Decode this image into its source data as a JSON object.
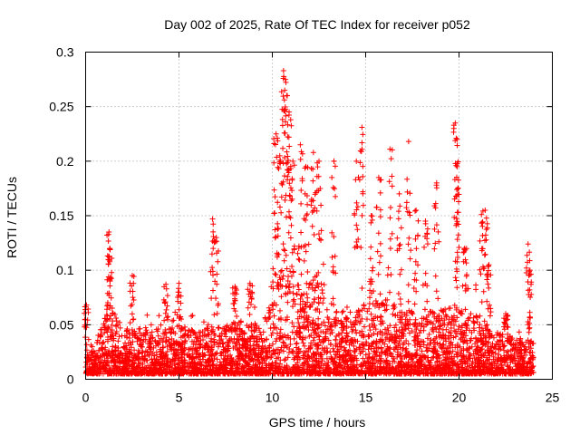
{
  "chart_data": {
    "type": "scatter",
    "title": "Day 002 of 2025, Rate Of TEC Index for receiver p052",
    "xlabel": "GPS time / hours",
    "ylabel": "ROTI / TECUs",
    "xlim": [
      0,
      25
    ],
    "ylim": [
      0,
      0.3
    ],
    "xticks": [
      0,
      5,
      10,
      15,
      20,
      25
    ],
    "yticks": [
      0,
      0.05,
      0.1,
      0.15,
      0.2,
      0.25,
      0.3
    ],
    "grid": true,
    "marker": "+",
    "marker_color": "#ff0000",
    "series": [
      {
        "name": "",
        "x_range": [
          0,
          24
        ],
        "baseline_envelope": [
          [
            0.0,
            0.035
          ],
          [
            0.5,
            0.03
          ],
          [
            1.0,
            0.06
          ],
          [
            1.3,
            0.075
          ],
          [
            2.0,
            0.045
          ],
          [
            3.0,
            0.05
          ],
          [
            4.0,
            0.045
          ],
          [
            5.0,
            0.05
          ],
          [
            6.0,
            0.045
          ],
          [
            7.0,
            0.05
          ],
          [
            8.0,
            0.055
          ],
          [
            9.0,
            0.05
          ],
          [
            9.6,
            0.06
          ],
          [
            10.0,
            0.1
          ],
          [
            10.5,
            0.14
          ],
          [
            11.0,
            0.11
          ],
          [
            11.5,
            0.085
          ],
          [
            12.0,
            0.09
          ],
          [
            12.5,
            0.1
          ],
          [
            13.0,
            0.08
          ],
          [
            14.0,
            0.06
          ],
          [
            15.0,
            0.07
          ],
          [
            16.0,
            0.075
          ],
          [
            17.0,
            0.065
          ],
          [
            18.0,
            0.06
          ],
          [
            19.0,
            0.065
          ],
          [
            20.0,
            0.07
          ],
          [
            21.0,
            0.06
          ],
          [
            22.0,
            0.045
          ],
          [
            23.0,
            0.04
          ],
          [
            24.0,
            0.035
          ]
        ],
        "spikes": [
          [
            0.05,
            0.068
          ],
          [
            1.25,
            0.135
          ],
          [
            1.3,
            0.12
          ],
          [
            2.5,
            0.095
          ],
          [
            4.3,
            0.087
          ],
          [
            5.0,
            0.088
          ],
          [
            6.8,
            0.147
          ],
          [
            7.0,
            0.13
          ],
          [
            8.0,
            0.085
          ],
          [
            8.8,
            0.088
          ],
          [
            10.2,
            0.225
          ],
          [
            10.4,
            0.205
          ],
          [
            10.6,
            0.283
          ],
          [
            10.7,
            0.275
          ],
          [
            10.8,
            0.26
          ],
          [
            10.9,
            0.245
          ],
          [
            11.1,
            0.2
          ],
          [
            11.5,
            0.215
          ],
          [
            11.8,
            0.195
          ],
          [
            12.2,
            0.208
          ],
          [
            12.5,
            0.2
          ],
          [
            13.3,
            0.2
          ],
          [
            14.5,
            0.2
          ],
          [
            14.8,
            0.231
          ],
          [
            15.3,
            0.15
          ],
          [
            15.7,
            0.185
          ],
          [
            16.3,
            0.211
          ],
          [
            16.8,
            0.17
          ],
          [
            17.3,
            0.218
          ],
          [
            17.7,
            0.155
          ],
          [
            18.2,
            0.145
          ],
          [
            18.8,
            0.18
          ],
          [
            19.8,
            0.235
          ],
          [
            19.85,
            0.221
          ],
          [
            19.9,
            0.195
          ],
          [
            20.3,
            0.12
          ],
          [
            21.2,
            0.151
          ],
          [
            21.4,
            0.155
          ],
          [
            21.6,
            0.105
          ],
          [
            22.5,
            0.06
          ],
          [
            23.7,
            0.124
          ],
          [
            23.8,
            0.1
          ]
        ]
      }
    ]
  }
}
